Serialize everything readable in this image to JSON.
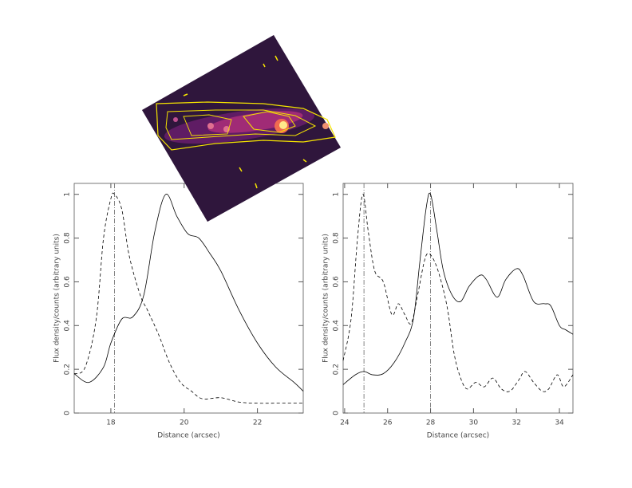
{
  "chart_data": [
    {
      "type": "line",
      "xlabel": "Distance (arcsec)",
      "ylabel": "Flux density/counts (arbitrary units)",
      "xlim": [
        17,
        23.25
      ],
      "ylim": [
        0,
        1.05
      ],
      "xticks": [
        18,
        20,
        22
      ],
      "yticks": [
        0,
        0.2,
        0.4,
        0.6,
        0.8,
        1
      ],
      "vlines": [
        18.1
      ],
      "series": [
        {
          "style": "solid",
          "color": "#000000",
          "x": [
            17.0,
            17.4,
            17.8,
            18.0,
            18.3,
            18.6,
            18.9,
            19.2,
            19.5,
            19.8,
            20.1,
            20.4,
            20.7,
            21.0,
            21.5,
            22.0,
            22.5,
            23.0,
            23.25
          ],
          "values": [
            0.18,
            0.14,
            0.21,
            0.32,
            0.43,
            0.44,
            0.54,
            0.83,
            1.0,
            0.9,
            0.82,
            0.8,
            0.73,
            0.65,
            0.47,
            0.32,
            0.21,
            0.14,
            0.1
          ]
        },
        {
          "style": "dashed",
          "color": "#000000",
          "x": [
            17.0,
            17.3,
            17.6,
            17.8,
            18.0,
            18.1,
            18.3,
            18.5,
            18.8,
            19.0,
            19.3,
            19.6,
            19.9,
            20.2,
            20.5,
            21.0,
            21.5,
            22.0,
            22.5,
            23.25
          ],
          "values": [
            0.18,
            0.21,
            0.43,
            0.8,
            0.98,
            1.0,
            0.93,
            0.72,
            0.54,
            0.47,
            0.36,
            0.23,
            0.14,
            0.1,
            0.065,
            0.07,
            0.05,
            0.045,
            0.045,
            0.045
          ]
        }
      ]
    },
    {
      "type": "line",
      "xlabel": "Distance (arcsec)",
      "ylabel": "Flux density/counts (arbitrary units)",
      "xlim": [
        23.93,
        34.63
      ],
      "ylim": [
        0,
        1.05
      ],
      "xticks": [
        24,
        26,
        28,
        30,
        32,
        34
      ],
      "yticks": [
        0,
        0.2,
        0.4,
        0.6,
        0.8,
        1
      ],
      "vlines": [
        24.9,
        28.0
      ],
      "series": [
        {
          "style": "solid",
          "color": "#000000",
          "x": [
            23.93,
            24.5,
            24.9,
            25.3,
            25.8,
            26.3,
            26.8,
            27.2,
            27.5,
            27.8,
            28.0,
            28.3,
            28.6,
            29.0,
            29.4,
            29.8,
            30.3,
            30.6,
            31.1,
            31.5,
            32.0,
            32.3,
            32.8,
            33.3,
            33.6,
            34.0,
            34.3,
            34.63
          ],
          "values": [
            0.13,
            0.175,
            0.19,
            0.175,
            0.18,
            0.23,
            0.32,
            0.43,
            0.69,
            0.94,
            1.0,
            0.83,
            0.65,
            0.54,
            0.51,
            0.58,
            0.63,
            0.61,
            0.53,
            0.61,
            0.66,
            0.63,
            0.51,
            0.5,
            0.49,
            0.4,
            0.38,
            0.36
          ]
        },
        {
          "style": "dashed",
          "color": "#000000",
          "x": [
            23.93,
            24.3,
            24.6,
            24.85,
            25.1,
            25.4,
            25.8,
            26.2,
            26.5,
            26.8,
            27.1,
            27.4,
            27.7,
            27.9,
            28.2,
            28.5,
            28.8,
            29.1,
            29.4,
            29.7,
            30.1,
            30.5,
            30.9,
            31.3,
            31.7,
            32.1,
            32.4,
            32.8,
            33.2,
            33.5,
            33.9,
            34.2,
            34.63
          ],
          "values": [
            0.24,
            0.43,
            0.8,
            1.0,
            0.83,
            0.65,
            0.6,
            0.45,
            0.5,
            0.45,
            0.41,
            0.54,
            0.69,
            0.73,
            0.69,
            0.6,
            0.47,
            0.27,
            0.16,
            0.11,
            0.14,
            0.12,
            0.16,
            0.11,
            0.1,
            0.15,
            0.19,
            0.14,
            0.1,
            0.11,
            0.175,
            0.12,
            0.175
          ]
        }
      ]
    }
  ]
}
